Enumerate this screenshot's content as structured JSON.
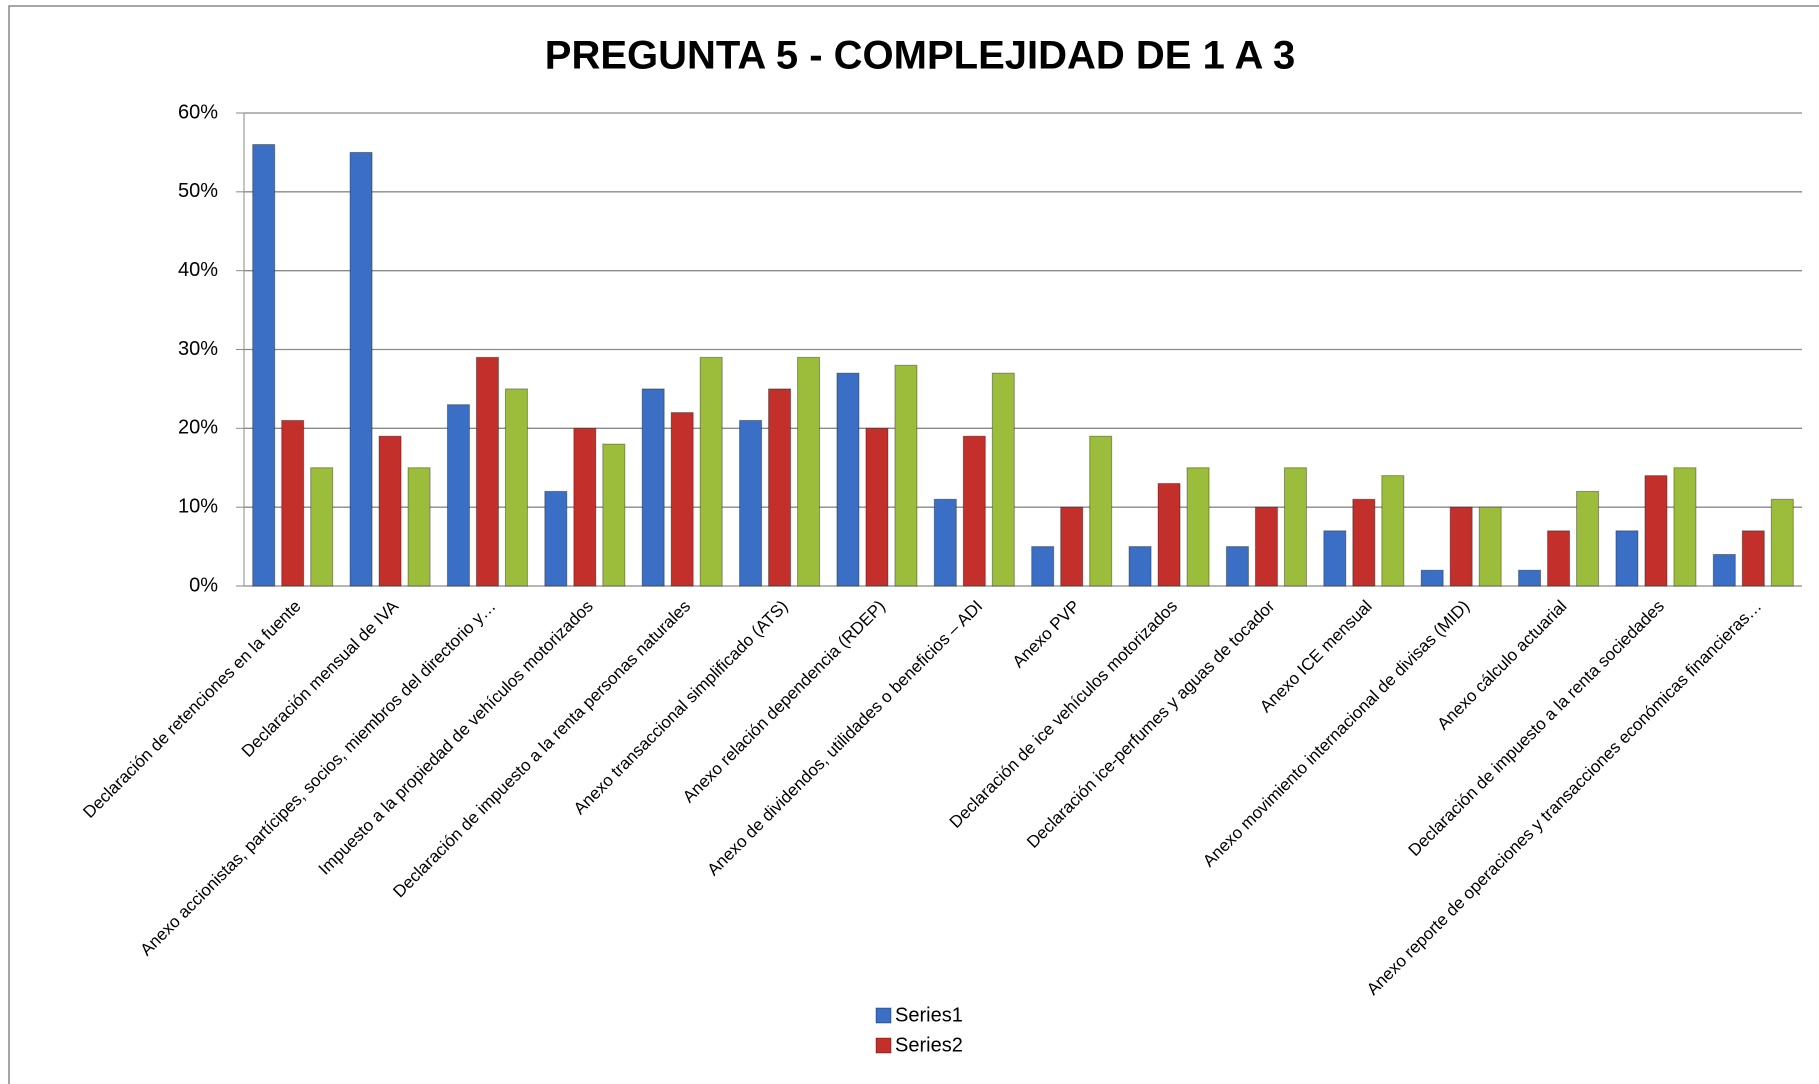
{
  "chart_data": {
    "type": "bar",
    "title": "PREGUNTA 5 - COMPLEJIDAD DE 1 A 3",
    "categories": [
      "Declaración de retenciones en la fuente",
      "Declaración mensual de IVA",
      "Anexo accionistas, partícipes, socios, miembros del directorio y…",
      "Impuesto a la propiedad de vehículos motorizados",
      "Declaración de impuesto a la renta personas naturales",
      "Anexo transaccional simplificado (ATS)",
      "Anexo relación dependencia (RDEP)",
      "Anexo de dividendos, utilidades o beneficios – ADI",
      "Anexo PVP",
      "Declaración de ice vehículos motorizados",
      "Declaración ice-perfumes y aguas de tocador",
      "Anexo ICE mensual",
      "Anexo movimiento internacional de divisas (MID)",
      "Anexo cálculo actuarial",
      "Declaración de impuesto a la renta sociedades",
      "Anexo reporte de operaciones y transacciones económicas financieras…"
    ],
    "series": [
      {
        "name": "Series1",
        "color": "#3b6fc6",
        "values": [
          56,
          55,
          23,
          12,
          25,
          21,
          27,
          11,
          5,
          5,
          5,
          7,
          2,
          2,
          7,
          4
        ]
      },
      {
        "name": "Series2",
        "color": "#c3302c",
        "values": [
          21,
          19,
          29,
          20,
          22,
          25,
          20,
          19,
          10,
          13,
          10,
          11,
          10,
          7,
          14,
          7
        ]
      },
      {
        "color": "#9cbd3c",
        "values": [
          15,
          15,
          25,
          18,
          29,
          29,
          28,
          27,
          19,
          15,
          15,
          14,
          10,
          12,
          15,
          11
        ]
      }
    ],
    "ylim": [
      0,
      60
    ],
    "yticks": [
      {
        "value": 0,
        "label": "0%"
      },
      {
        "value": 10,
        "label": "10%"
      },
      {
        "value": 20,
        "label": "20%"
      },
      {
        "value": 30,
        "label": "30%"
      },
      {
        "value": 40,
        "label": "40%"
      },
      {
        "value": 50,
        "label": "50%"
      },
      {
        "value": 60,
        "label": "60%"
      }
    ],
    "grid": true
  }
}
